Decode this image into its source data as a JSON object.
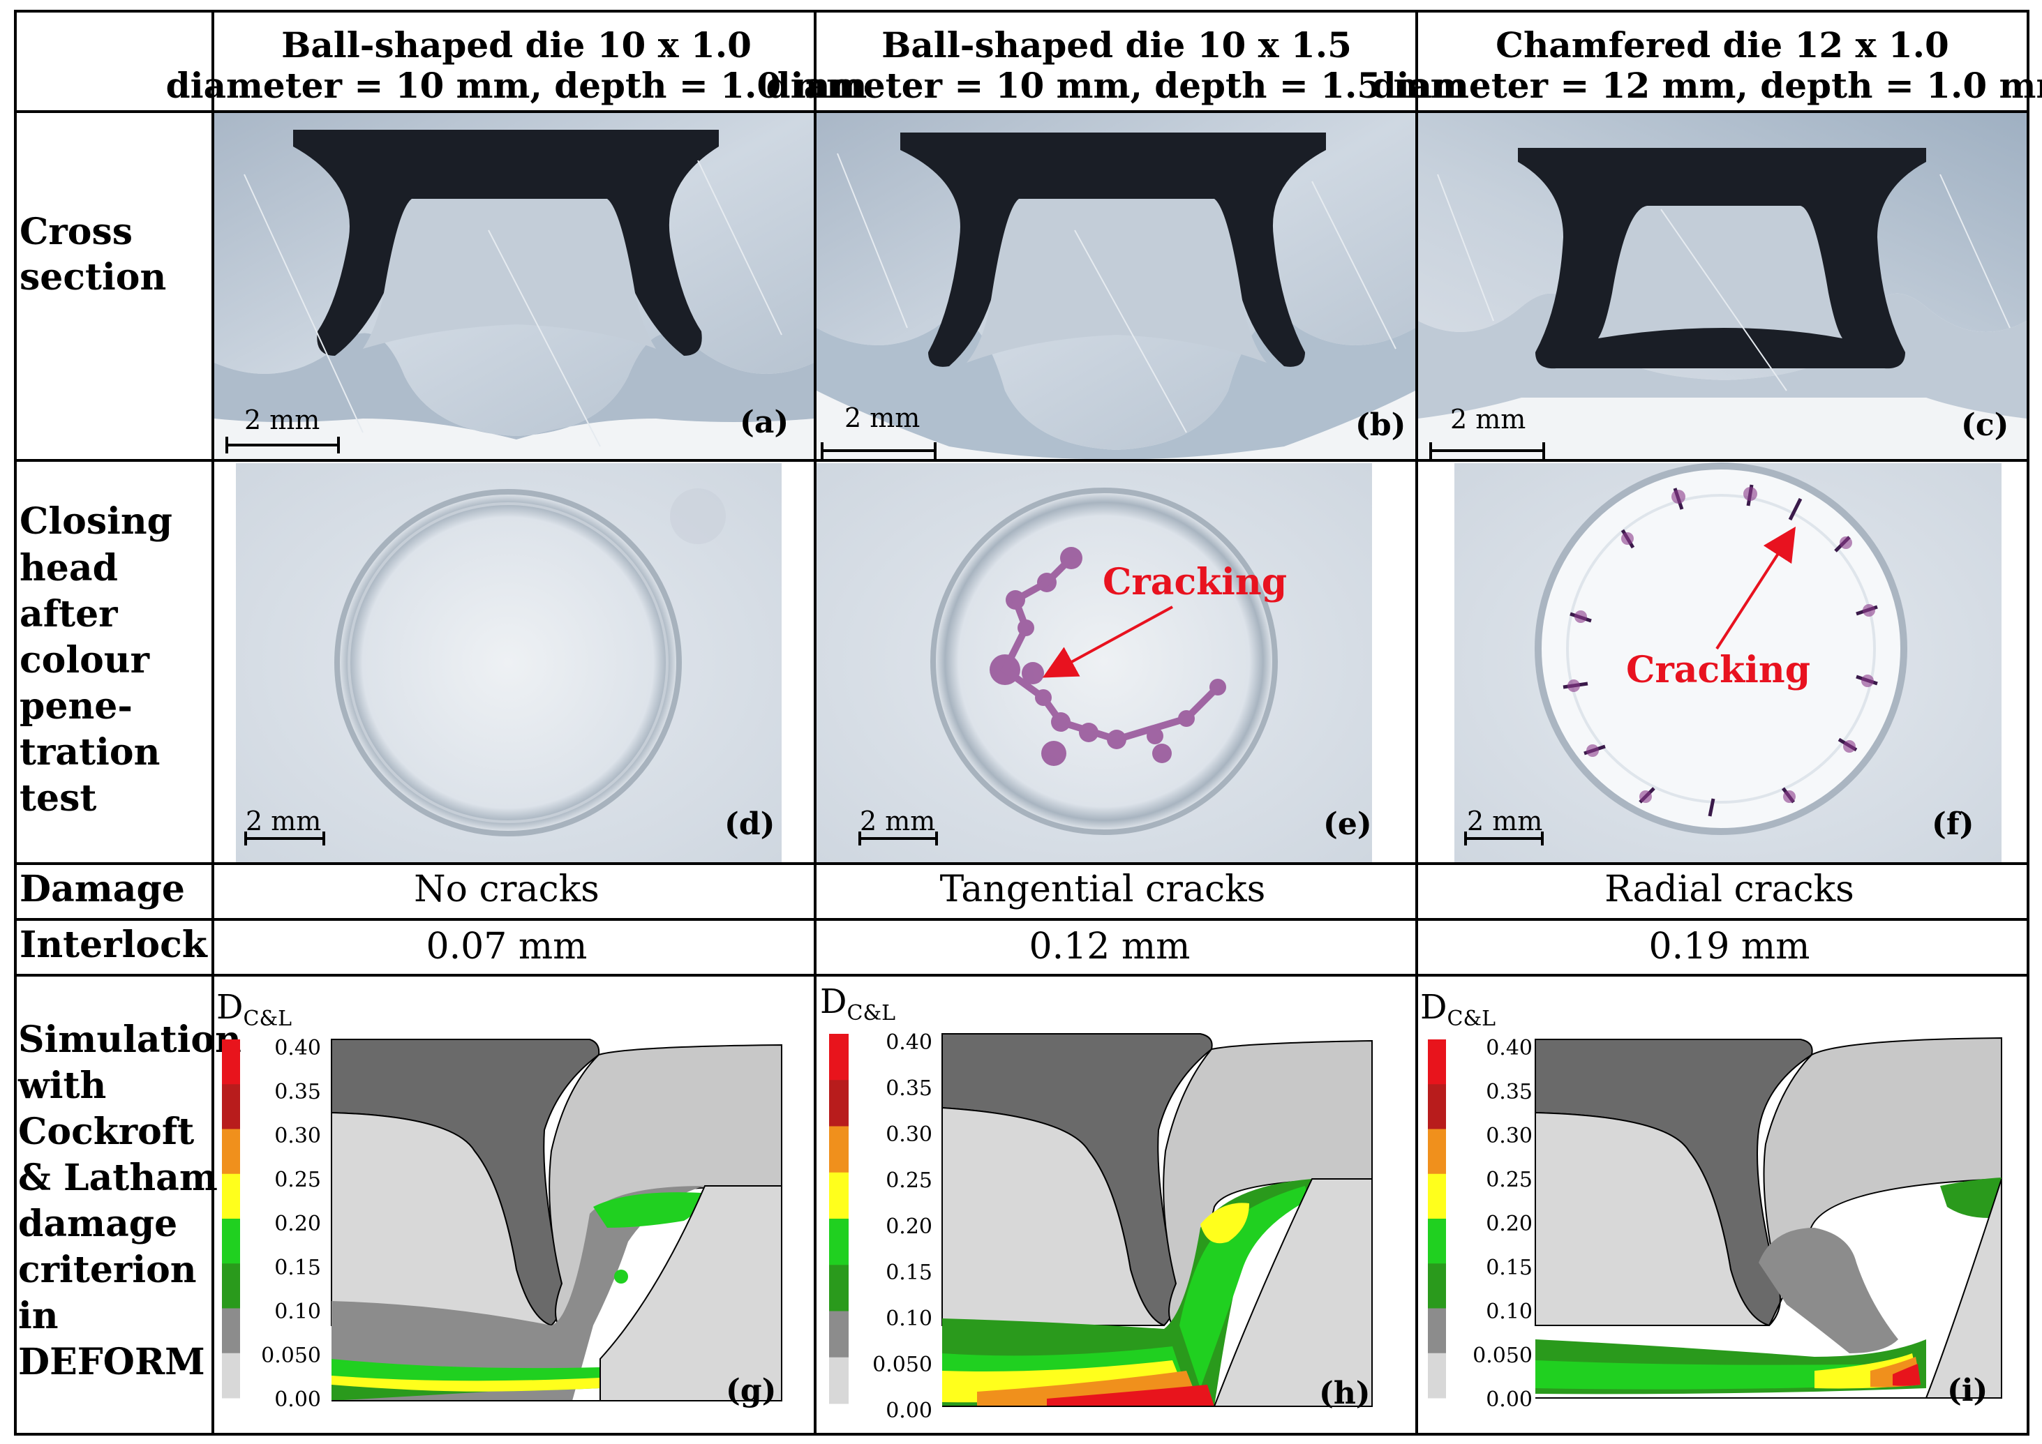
{
  "columns": [
    {
      "title": "Ball-shaped die 10 x 1.0",
      "subtitle": "diameter = 10 mm, depth = 1.0 mm"
    },
    {
      "title": "Ball-shaped die 10 x 1.5",
      "subtitle": "diameter = 10 mm, depth = 1.5 mm"
    },
    {
      "title": "Chamfered die 12 x 1.0",
      "subtitle": "diameter = 12 mm, depth = 1.0 mm"
    }
  ],
  "rows": {
    "cross_section": [
      "Cross",
      "section"
    ],
    "closing_head": [
      "Closing",
      "head",
      "after",
      "colour",
      "pene-",
      "tration",
      "test"
    ],
    "damage": "Damage",
    "interlock": "Interlock",
    "simulation": [
      "Simulation",
      "with",
      "Cockroft",
      "& Latham",
      "damage",
      "criterion",
      "in",
      "DEFORM"
    ]
  },
  "damage_values": [
    "No cracks",
    "Tangential cracks",
    "Radial cracks"
  ],
  "interlock_values": [
    "0.07 mm",
    "0.12 mm",
    "0.19 mm"
  ],
  "scale_bar": "2 mm",
  "panel_labels": {
    "cross": [
      "(a)",
      "(b)",
      "(c)"
    ],
    "closing": [
      "(d)",
      "(e)",
      "(f)"
    ],
    "sim": [
      "(g)",
      "(h)",
      "(i)"
    ]
  },
  "annotation": "Cracking",
  "legend": {
    "symbol": "D",
    "subscript": "C&L",
    "ticks": [
      "0.40",
      "0.35",
      "0.30",
      "0.25",
      "0.20",
      "0.15",
      "0.10",
      "0.050",
      "0.00"
    ],
    "colors": [
      "#e8141c",
      "#b81c1c",
      "#f0901c",
      "#ffff1c",
      "#20d020",
      "#2a9a1c",
      "#8c8c8c",
      "#d8d8d8"
    ]
  },
  "colors": {
    "crack_label": "#e8121f",
    "die": "#6a6a6a",
    "material": "#c8c8c8",
    "dye": "#8a3a8a"
  }
}
